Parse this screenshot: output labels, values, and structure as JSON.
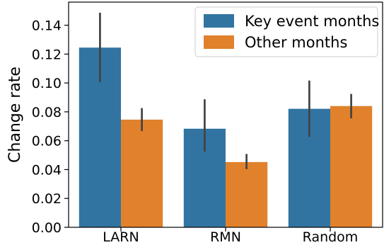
{
  "chart_data": {
    "type": "bar",
    "categories": [
      "LARN",
      "RMN",
      "Random"
    ],
    "series": [
      {
        "name": "Key event months",
        "color": "#3274a1",
        "values": [
          0.1245,
          0.0683,
          0.0821
        ],
        "error_low": [
          0.1005,
          0.0525,
          0.0627
        ],
        "error_high": [
          0.1487,
          0.0887,
          0.1017
        ]
      },
      {
        "name": "Other months",
        "color": "#e1812c",
        "values": [
          0.0746,
          0.0452,
          0.084
        ],
        "error_low": [
          0.0667,
          0.0403,
          0.0755
        ],
        "error_high": [
          0.0826,
          0.0508,
          0.0924
        ]
      }
    ],
    "title": "",
    "xlabel": "",
    "ylabel": "Change rate",
    "ylim": [
      0.0,
      0.156
    ],
    "yticks": [
      "0.00",
      "0.02",
      "0.04",
      "0.06",
      "0.08",
      "0.10",
      "0.12",
      "0.14"
    ],
    "error_bar_color": "#424242",
    "grid": false,
    "legend_position": "top-right"
  }
}
